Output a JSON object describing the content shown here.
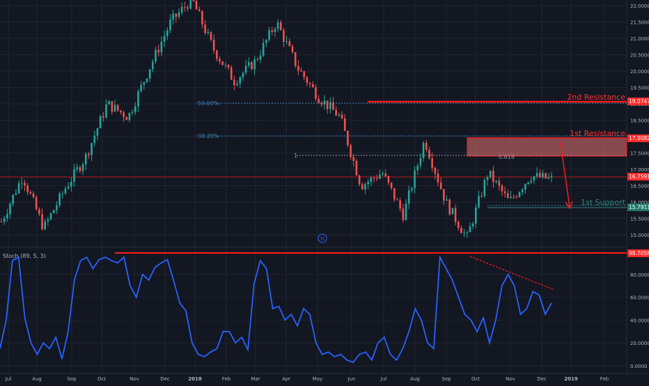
{
  "colors": {
    "background": "#131722",
    "grid": "#1f2433",
    "up": "#26a69a",
    "down": "#ef5350",
    "fib": "#3d7fb3",
    "resistance": "#ff1a1a",
    "support": "#2f8a76",
    "stoch": "#2962ff",
    "axis_text": "#b2b5be",
    "price_label_bg": "#ff2b2b",
    "support_label_bg": "#1f7a67"
  },
  "price_axis": {
    "ticks": [
      "22.0000",
      "21.5000",
      "21.0000",
      "20.5000",
      "20.0000",
      "19.5000",
      "19.0000",
      "18.5000",
      "18.0000",
      "17.5000",
      "17.0000",
      "16.5000",
      "16.0000",
      "15.5000",
      "15.0000"
    ],
    "ylim": [
      14.7,
      22.2
    ]
  },
  "stoch_axis": {
    "ticks": [
      "80.0000",
      "60.0000",
      "40.0000",
      "20.0000",
      "0.0000"
    ],
    "ylim": [
      -3,
      104
    ]
  },
  "time_axis": {
    "labels": [
      "Jul",
      "Aug",
      "Sep",
      "Oct",
      "Nov",
      "Dec",
      "2018",
      "Feb",
      "Mar",
      "Apr",
      "May",
      "Jun",
      "Jul",
      "Aug",
      "Sep",
      "Oct",
      "Nov",
      "Dec",
      "2019",
      "Feb"
    ]
  },
  "annotations": {
    "resistance_2_label": "2nd Resistance",
    "resistance_1_label": "1st Resistance",
    "support_1_label": "1st Support",
    "fib_50_label": "50.00%",
    "fib_382_label": "38.20%",
    "fib_1_label": "1",
    "fib_0618_label": "0.618",
    "event_marker": "D"
  },
  "price_labels": {
    "resistance_2": "19.0747",
    "resistance_1": "17.9082",
    "last_price": "16.7591",
    "support_1": "15.7911"
  },
  "stoch_panel": {
    "title": "Stoch (89, 5, 3)",
    "level_label": "98.7058"
  },
  "chart_data": [
    {
      "type": "candlestick",
      "title": "",
      "x_range": [
        "Jul 2017",
        "Feb 2019"
      ],
      "ylim": [
        14.7,
        22.2
      ],
      "approx_path": [
        {
          "t": "Jul 2017",
          "p": 15.4
        },
        {
          "t": "Jul 2017",
          "p": 16.8
        },
        {
          "t": "Aug 2017",
          "p": 15.2
        },
        {
          "t": "Sep 2017",
          "p": 16.4
        },
        {
          "t": "Oct 2017",
          "p": 17.4
        },
        {
          "t": "Nov 2017",
          "p": 19.0
        },
        {
          "t": "Nov 2017",
          "p": 18.6
        },
        {
          "t": "Dec 2017",
          "p": 20.1
        },
        {
          "t": "Jan 2018",
          "p": 21.5
        },
        {
          "t": "Jan 2018",
          "p": 22.2
        },
        {
          "t": "Feb 2018",
          "p": 20.7
        },
        {
          "t": "Mar 2018",
          "p": 19.7
        },
        {
          "t": "Apr 2018",
          "p": 20.3
        },
        {
          "t": "Apr 2018",
          "p": 21.5
        },
        {
          "t": "May 2018",
          "p": 20.1
        },
        {
          "t": "Jun 2018",
          "p": 19.2
        },
        {
          "t": "Jun 2018",
          "p": 18.6
        },
        {
          "t": "Jul 2018",
          "p": 16.5
        },
        {
          "t": "Aug 2018",
          "p": 16.9
        },
        {
          "t": "Sep 2018",
          "p": 15.6
        },
        {
          "t": "Sep 2018",
          "p": 17.9
        },
        {
          "t": "Oct 2018",
          "p": 16.0
        },
        {
          "t": "Oct 2018",
          "p": 14.9
        },
        {
          "t": "Nov 2018",
          "p": 16.9
        },
        {
          "t": "Nov 2018",
          "p": 16.0
        },
        {
          "t": "Dec 2018",
          "p": 16.8
        },
        {
          "t": "Dec 2018",
          "p": 16.7
        }
      ],
      "levels": [
        {
          "label": "2nd Resistance",
          "value": 19.0747
        },
        {
          "label": "1st Resistance",
          "value": 17.9082
        },
        {
          "label": "1st Support",
          "value": 15.7911
        },
        {
          "label": "50.00%",
          "value": 19.05
        },
        {
          "label": "38.20%",
          "value": 18.05
        },
        {
          "label": "1",
          "value": 17.45
        }
      ]
    },
    {
      "type": "line",
      "title": "Stoch (89, 5, 3)",
      "ylim": [
        0,
        100
      ],
      "series": [
        {
          "name": "Stoch (89, 5, 3)",
          "values": [
            15,
            40,
            92,
            95,
            42,
            20,
            10,
            20,
            15,
            25,
            6,
            30,
            75,
            92,
            95,
            85,
            93,
            95,
            92,
            90,
            95,
            70,
            60,
            80,
            75,
            86,
            90,
            93,
            75,
            55,
            48,
            20,
            10,
            8,
            12,
            15,
            30,
            30,
            20,
            25,
            14,
            72,
            92,
            85,
            50,
            52,
            40,
            45,
            35,
            50,
            45,
            20,
            10,
            12,
            8,
            10,
            5,
            3,
            10,
            12,
            5,
            20,
            25,
            10,
            5,
            15,
            30,
            50,
            40,
            20,
            15,
            95,
            85,
            75,
            60,
            45,
            40,
            30,
            42,
            20,
            40,
            70,
            80,
            70,
            45,
            50,
            65,
            62,
            45,
            55
          ]
        }
      ],
      "levels": [
        {
          "value": 98.7058
        }
      ]
    }
  ]
}
